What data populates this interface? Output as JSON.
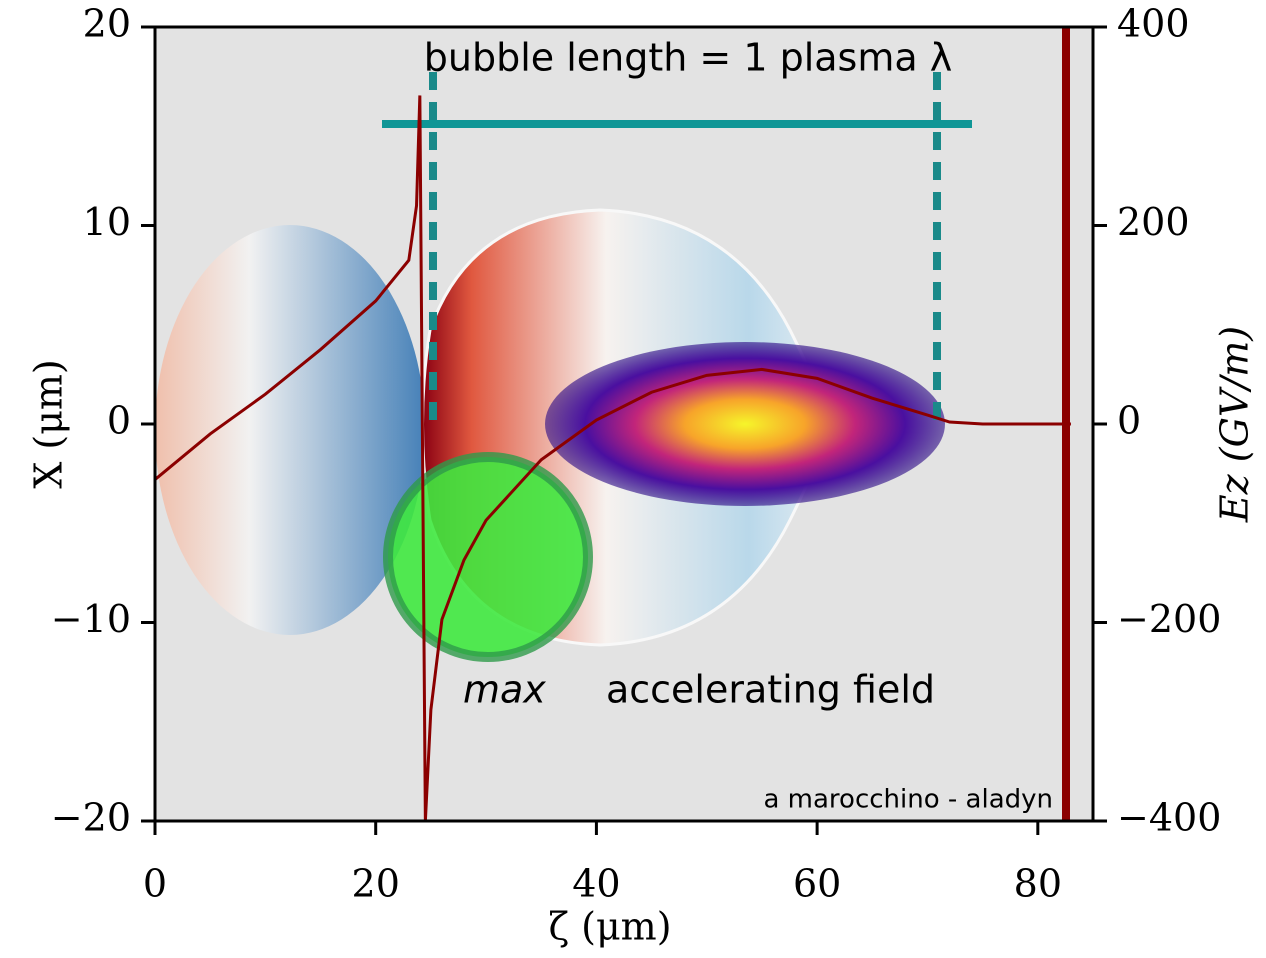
{
  "chart_data": {
    "type": "line",
    "xlabel": "ζ (μm)",
    "ylabel": "X (μm)",
    "y2label": "Ez (GV/m)",
    "annotations": [
      "bubble length = 1 plasma λ",
      "max",
      "accelerating field",
      "a marocchino - aladyn"
    ],
    "x": [
      0,
      5,
      10,
      15,
      20,
      23,
      23.7,
      24,
      24.5,
      25,
      26,
      28,
      30,
      35,
      40,
      45,
      50,
      55,
      60,
      65,
      70,
      72,
      75,
      83
    ],
    "series": [
      {
        "name": "Ez",
        "color": "#8b0000",
        "axis": "y2",
        "values": [
          -56,
          -10,
          30,
          75,
          124,
          165,
          220,
          331,
          -400,
          -288,
          -197,
          -137,
          -97,
          -36,
          4,
          32,
          49,
          55,
          46,
          26,
          9,
          2,
          0,
          0
        ]
      }
    ],
    "xlim": [
      0,
      85
    ],
    "xticks": [
      0,
      20,
      40,
      60,
      80
    ],
    "ylim": [
      -20,
      20
    ],
    "yticks": [
      {
        "value": -20,
        "label": "−20"
      },
      {
        "value": -10,
        "label": "−10"
      },
      0,
      10,
      20
    ],
    "y2lim": [
      -400,
      400
    ],
    "y2ticks": [
      {
        "value": -400,
        "label": "−400"
      },
      {
        "value": -200,
        "label": "−200"
      },
      0,
      200,
      400
    ]
  }
}
